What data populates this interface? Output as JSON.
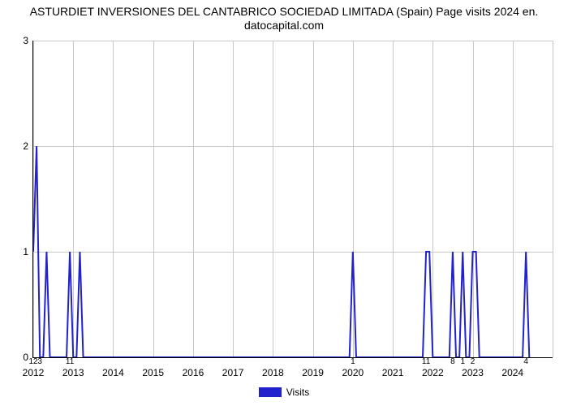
{
  "title_line1": "ASTURDIET INVERSIONES DEL CANTABRICO SOCIEDAD LIMITADA (Spain) Page visits 2024 en.",
  "title_line2": "datocapital.com",
  "chart": {
    "type": "line",
    "background_color": "#ffffff",
    "grid_color": "#c8c8c8",
    "axis_color": "#000000",
    "series_color": "#2222cc",
    "line_width": 2,
    "x_min": 0,
    "x_max": 156,
    "y_min": 0,
    "y_max": 3,
    "x_ticks": [
      {
        "pos": 0,
        "label": "2012"
      },
      {
        "pos": 12,
        "label": "2013"
      },
      {
        "pos": 24,
        "label": "2014"
      },
      {
        "pos": 36,
        "label": "2015"
      },
      {
        "pos": 48,
        "label": "2016"
      },
      {
        "pos": 60,
        "label": "2017"
      },
      {
        "pos": 72,
        "label": "2018"
      },
      {
        "pos": 84,
        "label": "2019"
      },
      {
        "pos": 96,
        "label": "2020"
      },
      {
        "pos": 108,
        "label": "2021"
      },
      {
        "pos": 120,
        "label": "2022"
      },
      {
        "pos": 132,
        "label": "2023"
      },
      {
        "pos": 144,
        "label": "2024"
      },
      {
        "pos": 156,
        "label": ""
      }
    ],
    "y_ticks": [
      {
        "pos": 0,
        "label": "0"
      },
      {
        "pos": 1,
        "label": "1"
      },
      {
        "pos": 2,
        "label": "2"
      },
      {
        "pos": 3,
        "label": "3"
      }
    ],
    "points": [
      {
        "x": 0,
        "y": 1
      },
      {
        "x": 1,
        "y": 2
      },
      {
        "x": 2,
        "y": 0
      },
      {
        "x": 3,
        "y": 0
      },
      {
        "x": 4,
        "y": 1
      },
      {
        "x": 5,
        "y": 0
      },
      {
        "x": 10,
        "y": 0
      },
      {
        "x": 11,
        "y": 1
      },
      {
        "x": 12,
        "y": 0
      },
      {
        "x": 13,
        "y": 0
      },
      {
        "x": 14,
        "y": 1
      },
      {
        "x": 15,
        "y": 0
      },
      {
        "x": 95,
        "y": 0
      },
      {
        "x": 96,
        "y": 1
      },
      {
        "x": 97,
        "y": 0
      },
      {
        "x": 117,
        "y": 0
      },
      {
        "x": 118,
        "y": 1
      },
      {
        "x": 119,
        "y": 1
      },
      {
        "x": 120,
        "y": 0
      },
      {
        "x": 125,
        "y": 0
      },
      {
        "x": 126,
        "y": 1
      },
      {
        "x": 127,
        "y": 0
      },
      {
        "x": 128,
        "y": 0
      },
      {
        "x": 129,
        "y": 1
      },
      {
        "x": 130,
        "y": 0
      },
      {
        "x": 131,
        "y": 0
      },
      {
        "x": 132,
        "y": 1
      },
      {
        "x": 133,
        "y": 1
      },
      {
        "x": 134,
        "y": 0
      },
      {
        "x": 147,
        "y": 0
      },
      {
        "x": 148,
        "y": 1
      },
      {
        "x": 149,
        "y": 0
      }
    ],
    "data_labels": [
      {
        "x": 0,
        "text": "12"
      },
      {
        "x": 2,
        "text": "3"
      },
      {
        "x": 11,
        "text": "11"
      },
      {
        "x": 96,
        "text": "1"
      },
      {
        "x": 118,
        "text": "11"
      },
      {
        "x": 126,
        "text": "8"
      },
      {
        "x": 129,
        "text": "1"
      },
      {
        "x": 132,
        "text": "2"
      },
      {
        "x": 148,
        "text": "4"
      }
    ]
  },
  "legend": {
    "label": "Visits",
    "swatch_color": "#2222cc"
  }
}
